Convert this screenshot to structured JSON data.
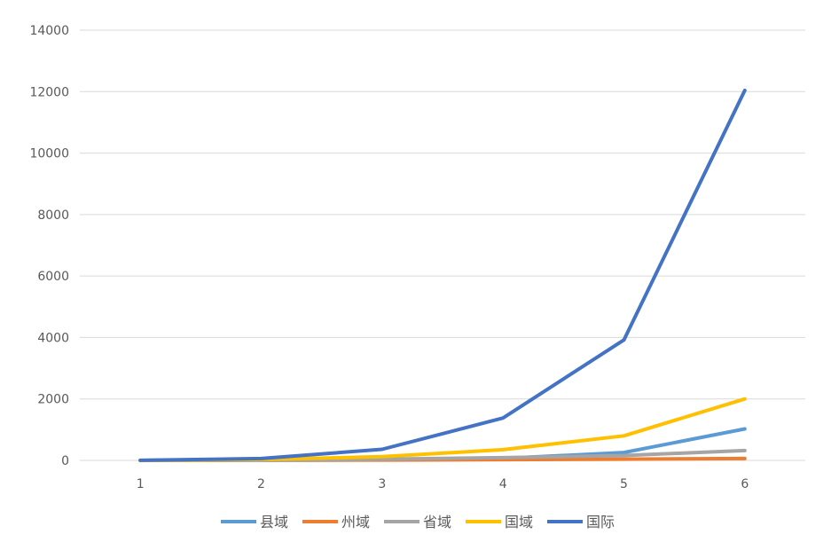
{
  "chart_data": {
    "type": "line",
    "title": "",
    "xlabel": "",
    "ylabel": "",
    "categories": [
      "1",
      "2",
      "3",
      "4",
      "5",
      "6"
    ],
    "ylim": [
      0,
      14000
    ],
    "yticks": [
      0,
      2000,
      4000,
      6000,
      8000,
      10000,
      12000,
      14000
    ],
    "grid": true,
    "legend_position": "bottom",
    "series": [
      {
        "name": "县域",
        "color": "#5B9BD5",
        "values": [
          1,
          4,
          16,
          64,
          256,
          1024
        ]
      },
      {
        "name": "州域",
        "color": "#ED7D31",
        "values": [
          1,
          5,
          12,
          25,
          40,
          60
        ]
      },
      {
        "name": "省域",
        "color": "#A5A5A5",
        "values": [
          1,
          8,
          40,
          90,
          160,
          320
        ]
      },
      {
        "name": "国域",
        "color": "#FFC000",
        "values": [
          1,
          30,
          120,
          350,
          800,
          2000
        ]
      },
      {
        "name": "国际",
        "color": "#4472C4",
        "values": [
          2,
          60,
          360,
          1380,
          3920,
          12040
        ]
      }
    ]
  }
}
